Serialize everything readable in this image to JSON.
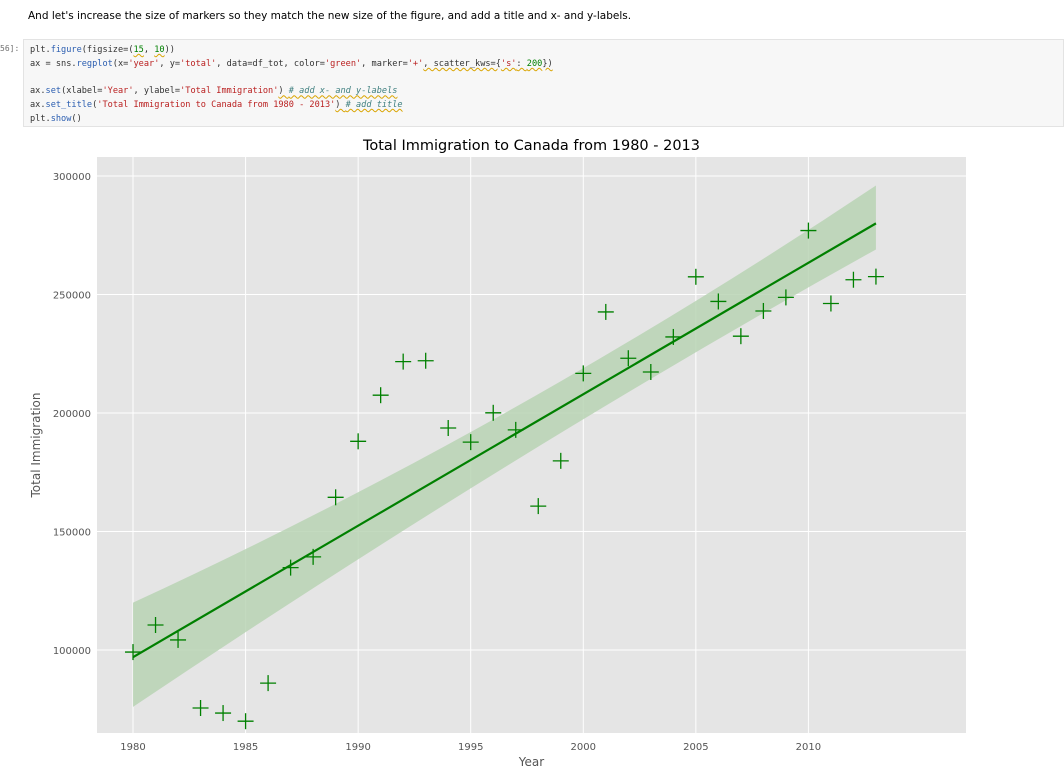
{
  "notebook": {
    "markdown_text": "And let's increase the size of markers so they match the new size of the figure, and add a title and x- and y-labels.",
    "prompt": "56]:",
    "code_lines": {
      "l1a": "plt.",
      "l1b": "figure",
      "l1c": "(figsize=(",
      "l1d": "15",
      "l1e": ", ",
      "l1f": "10",
      "l1g": "))",
      "l2a": "ax = sns.",
      "l2b": "regplot",
      "l2c": "(x=",
      "l2d": "'year'",
      "l2e": ", y=",
      "l2f": "'total'",
      "l2g": ", data=df_tot, color=",
      "l2h": "'green'",
      "l2i": ", marker=",
      "l2j": "'+'",
      "l2k": ", scatter_kws={",
      "l2l": "'s'",
      "l2m": ": ",
      "l2n": "200",
      "l2o": "})",
      "l3a": "ax.",
      "l3b": "set",
      "l3c": "(xlabel=",
      "l3d": "'Year'",
      "l3e": ", ylabel=",
      "l3f": "'Total Immigration'",
      "l3g": ") ",
      "l3h": "# add x- and y-labels",
      "l4a": "ax.",
      "l4b": "set_title",
      "l4c": "(",
      "l4d": "'Total Immigration to Canada from 1980 - 2013'",
      "l4e": ") ",
      "l4f": "# add title",
      "l5a": "plt.",
      "l5b": "show",
      "l5c": "()"
    }
  },
  "colors": {
    "marker": "#008000",
    "line": "#008000",
    "band": "#b8d4b4",
    "plot_bg": "#e5e5e5",
    "grid": "#ffffff",
    "tick_text": "#555555"
  },
  "chart_data": {
    "type": "scatter",
    "title": "Total Immigration to Canada from 1980 - 2013",
    "xlabel": "Year",
    "ylabel": "Total Immigration",
    "xlim": [
      1978.4,
      2017.0
    ],
    "ylim": [
      65000,
      308000
    ],
    "xticks": [
      1980,
      1985,
      1990,
      1995,
      2000,
      2005,
      2010
    ],
    "yticks": [
      100000,
      150000,
      200000,
      250000,
      300000
    ],
    "xtick_labels": [
      "1980",
      "1985",
      "1990",
      "1995",
      "2000",
      "2005",
      "2010"
    ],
    "ytick_labels": [
      "100000",
      "150000",
      "200000",
      "250000",
      "300000"
    ],
    "marker": "+",
    "grid": true,
    "x": [
      1980,
      1981,
      1982,
      1983,
      1984,
      1985,
      1986,
      1987,
      1988,
      1989,
      1990,
      1991,
      1992,
      1993,
      1994,
      1995,
      1996,
      1997,
      1998,
      1999,
      2000,
      2001,
      2002,
      2003,
      2004,
      2005,
      2006,
      2007,
      2008,
      2009,
      2010,
      2011,
      2012,
      2013
    ],
    "y": [
      99137,
      110563,
      104271,
      75550,
      73417,
      69978,
      86048,
      134771,
      139306,
      164432,
      188054,
      207509,
      221687,
      222049,
      193665,
      187712,
      200085,
      192885,
      160727,
      179818,
      216712,
      242643,
      223111,
      217297,
      232083,
      257457,
      247057,
      232405,
      243047,
      248768,
      276956,
      246194,
      256222,
      257537
    ],
    "regression": {
      "x": [
        1980,
        2013
      ],
      "y": [
        97000,
        280000
      ],
      "ci_upper": [
        120000,
        296000
      ],
      "ci_lower": [
        76000,
        269000
      ],
      "ci_mid_x": 1997,
      "ci_mid_upper": 197000,
      "ci_mid_lower": 182000
    }
  }
}
